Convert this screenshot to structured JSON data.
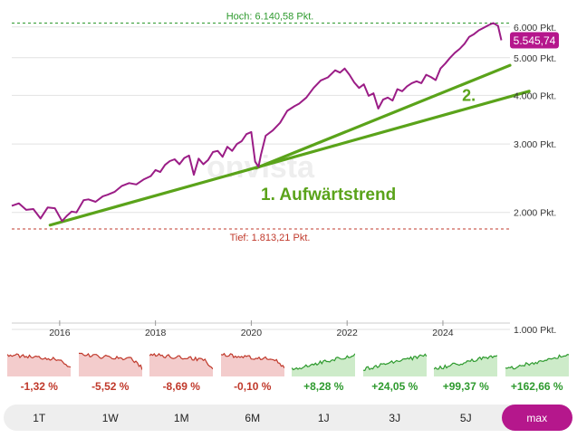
{
  "chart_data": {
    "type": "line",
    "y_scale": "log",
    "ylim": [
      1000,
      6600
    ],
    "xlim": [
      2015.0,
      2025.4
    ],
    "y_ticks": [
      {
        "value": 1000,
        "label": "1.000 Pkt."
      },
      {
        "value": 2000,
        "label": "2.000 Pkt."
      },
      {
        "value": 3000,
        "label": "3.000 Pkt."
      },
      {
        "value": 4000,
        "label": "4.000 Pkt."
      },
      {
        "value": 5000,
        "label": "5.000 Pkt."
      },
      {
        "value": 6000,
        "label": "6.000 Pkt."
      }
    ],
    "x_ticks": [
      {
        "value": 2016,
        "label": "2016"
      },
      {
        "value": 2018,
        "label": "2018"
      },
      {
        "value": 2020,
        "label": "2020"
      },
      {
        "value": 2022,
        "label": "2022"
      },
      {
        "value": 2024,
        "label": "2024"
      }
    ],
    "series": [
      {
        "color": "#9b1d86",
        "x": [
          2015.0,
          2015.15,
          2015.3,
          2015.45,
          2015.6,
          2015.75,
          2015.9,
          2016.05,
          2016.15,
          2016.25,
          2016.35,
          2016.5,
          2016.6,
          2016.75,
          2016.9,
          2017.0,
          2017.15,
          2017.3,
          2017.45,
          2017.6,
          2017.75,
          2017.9,
          2018.0,
          2018.1,
          2018.2,
          2018.3,
          2018.4,
          2018.5,
          2018.6,
          2018.7,
          2018.8,
          2018.9,
          2019.0,
          2019.1,
          2019.2,
          2019.3,
          2019.4,
          2019.5,
          2019.6,
          2019.7,
          2019.8,
          2019.9,
          2020.0,
          2020.08,
          2020.15,
          2020.2,
          2020.3,
          2020.45,
          2020.6,
          2020.75,
          2020.9,
          2021.0,
          2021.15,
          2021.3,
          2021.45,
          2021.6,
          2021.75,
          2021.85,
          2021.95,
          2022.05,
          2022.15,
          2022.25,
          2022.35,
          2022.45,
          2022.55,
          2022.65,
          2022.75,
          2022.85,
          2022.95,
          2023.05,
          2023.15,
          2023.25,
          2023.35,
          2023.45,
          2023.55,
          2023.65,
          2023.75,
          2023.85,
          2023.95,
          2024.05,
          2024.15,
          2024.25,
          2024.35,
          2024.45,
          2024.55,
          2024.65,
          2024.75,
          2024.85,
          2024.95,
          2025.05,
          2025.15,
          2025.22
        ],
        "y": [
          2080,
          2110,
          2030,
          2040,
          1930,
          2060,
          2050,
          1900,
          1960,
          2010,
          2000,
          2150,
          2160,
          2130,
          2200,
          2220,
          2260,
          2340,
          2380,
          2360,
          2430,
          2480,
          2570,
          2540,
          2650,
          2710,
          2740,
          2660,
          2760,
          2800,
          2500,
          2750,
          2660,
          2730,
          2860,
          2880,
          2780,
          2950,
          2880,
          3000,
          3050,
          3180,
          3220,
          2700,
          2620,
          2810,
          3150,
          3250,
          3400,
          3650,
          3750,
          3810,
          3950,
          4180,
          4370,
          4450,
          4640,
          4580,
          4690,
          4520,
          4320,
          4180,
          4270,
          3990,
          4050,
          3700,
          3900,
          3950,
          3880,
          4150,
          4100,
          4220,
          4300,
          4350,
          4300,
          4520,
          4460,
          4380,
          4690,
          4830,
          5000,
          5150,
          5270,
          5430,
          5660,
          5750,
          5880,
          5970,
          6060,
          6140,
          6040,
          5546
        ]
      }
    ],
    "reference_lines": [
      {
        "label": "Hoch: 6.140,58 Pkt.",
        "value": 6140.58,
        "color": "#2e9a2e"
      },
      {
        "label": "Tief: 1.813,21 Pkt.",
        "value": 1813.21,
        "color": "#c0392b"
      }
    ],
    "last_value_badge": {
      "text": "5.545,74",
      "value": 5545.74,
      "color": "#b5178c"
    },
    "trend_lines": [
      {
        "x1": 2015.8,
        "y1": 1855,
        "x2": 2025.8,
        "y2": 4100,
        "color": "#5aa31a"
      },
      {
        "x1": 2020.1,
        "y1": 2600,
        "x2": 2025.4,
        "y2": 4780,
        "color": "#5aa31a"
      }
    ],
    "annotations": [
      {
        "text": "1. Aufwärtstrend",
        "x": 2020.2,
        "y": 2150,
        "color": "#5aa31a"
      },
      {
        "text": "2.",
        "x": 2024.4,
        "y": 3870,
        "color": "#5aa31a"
      }
    ],
    "watermark": "onvista"
  },
  "performance": [
    {
      "value": "-1,32 %",
      "direction": "down"
    },
    {
      "value": "-5,52 %",
      "direction": "down"
    },
    {
      "value": "-8,69 %",
      "direction": "down"
    },
    {
      "value": "-0,10 %",
      "direction": "down"
    },
    {
      "value": "+8,28 %",
      "direction": "up"
    },
    {
      "value": "+24,05 %",
      "direction": "up"
    },
    {
      "value": "+99,37 %",
      "direction": "up"
    },
    {
      "value": "+162,66 %",
      "direction": "up"
    }
  ],
  "colors": {
    "down_text": "#c0392b",
    "down_fill": "#f3cccc",
    "down_line": "#c0392b",
    "up_text": "#2e9a2e",
    "up_fill": "#cdebc9",
    "up_line": "#2e9a2e",
    "accent": "#b5178c"
  },
  "ranges": [
    {
      "label": "1T",
      "active": false
    },
    {
      "label": "1W",
      "active": false
    },
    {
      "label": "1M",
      "active": false
    },
    {
      "label": "6M",
      "active": false
    },
    {
      "label": "1J",
      "active": false
    },
    {
      "label": "3J",
      "active": false
    },
    {
      "label": "5J",
      "active": false
    },
    {
      "label": "max",
      "active": true
    }
  ]
}
